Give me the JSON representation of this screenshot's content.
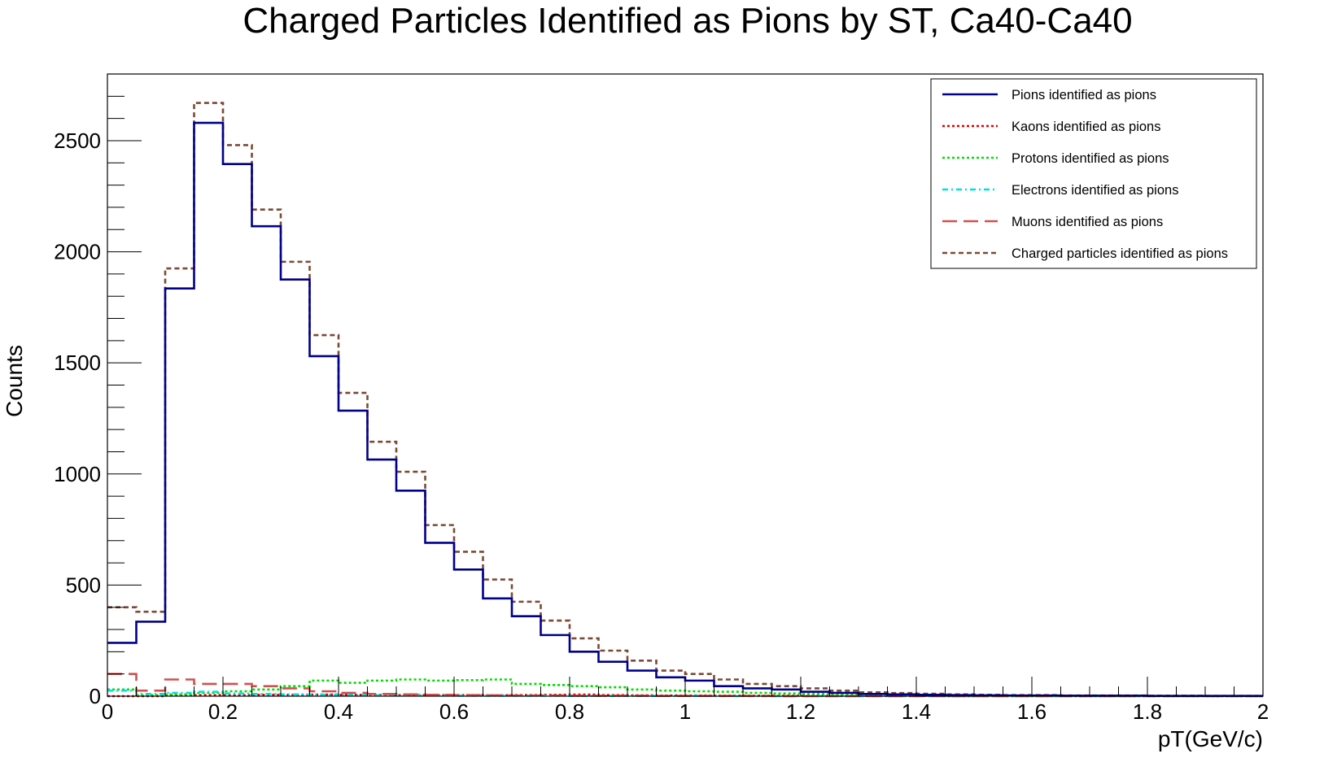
{
  "chart_data": {
    "type": "histogram",
    "title": "Charged Particles Identified as Pions by ST, Ca40-Ca40",
    "xlabel": "pT(GeV/c)",
    "ylabel": "Counts",
    "xlim": [
      0,
      2
    ],
    "ylim": [
      0,
      2800
    ],
    "bin_width": 0.05,
    "x_bin_edges_start": 0,
    "x_ticks": [
      "0",
      "0.2",
      "0.4",
      "0.6",
      "0.8",
      "1",
      "1.2",
      "1.4",
      "1.6",
      "1.8",
      "2"
    ],
    "y_ticks": [
      "0",
      "500",
      "1000",
      "1500",
      "2000",
      "2500"
    ],
    "legend_position": "top-right",
    "series": [
      {
        "name": "Pions identified as pions",
        "color": "#00008b",
        "style": "solid",
        "values": [
          240,
          335,
          1835,
          2580,
          2395,
          2115,
          1875,
          1530,
          1285,
          1065,
          925,
          690,
          570,
          440,
          360,
          275,
          200,
          155,
          115,
          85,
          70,
          45,
          35,
          30,
          20,
          15,
          10,
          8,
          6,
          5,
          4,
          3,
          3,
          2,
          2,
          2,
          1,
          1,
          1,
          1
        ]
      },
      {
        "name": "Kaons identified as pions",
        "color": "#e00000",
        "style": "dotted",
        "values": [
          0,
          0,
          3,
          5,
          5,
          6,
          6,
          7,
          6,
          6,
          5,
          5,
          5,
          4,
          5,
          6,
          7,
          5,
          4,
          3,
          3,
          2,
          2,
          2,
          1,
          1,
          1,
          1,
          1,
          0,
          0,
          0,
          0,
          0,
          0,
          0,
          0,
          0,
          0,
          0
        ]
      },
      {
        "name": "Protons identified as pions",
        "color": "#00dd00",
        "style": "dotted",
        "values": [
          30,
          5,
          8,
          15,
          22,
          30,
          45,
          70,
          60,
          70,
          75,
          70,
          72,
          75,
          55,
          50,
          45,
          40,
          30,
          25,
          22,
          20,
          15,
          12,
          10,
          8,
          6,
          5,
          4,
          3,
          2,
          2,
          2,
          1,
          1,
          1,
          1,
          1,
          0,
          0
        ]
      },
      {
        "name": "Electrons identified as pions",
        "color": "#00e0e0",
        "style": "dashdot",
        "values": [
          25,
          10,
          15,
          20,
          12,
          10,
          8,
          6,
          5,
          4,
          3,
          3,
          2,
          2,
          2,
          2,
          1,
          1,
          1,
          1,
          1,
          0,
          0,
          0,
          0,
          0,
          0,
          0,
          0,
          0,
          0,
          0,
          0,
          0,
          0,
          0,
          0,
          0,
          0,
          0
        ]
      },
      {
        "name": "Muons identified as pions",
        "color": "#d05050",
        "style": "longdash",
        "values": [
          100,
          25,
          75,
          55,
          55,
          45,
          35,
          22,
          15,
          10,
          8,
          6,
          5,
          4,
          3,
          3,
          2,
          2,
          2,
          1,
          1,
          1,
          1,
          0,
          0,
          0,
          0,
          0,
          0,
          0,
          0,
          0,
          0,
          0,
          0,
          0,
          0,
          0,
          0,
          0
        ]
      },
      {
        "name": "Charged particles identified as pions",
        "color": "#7a4a36",
        "style": "dashed",
        "values": [
          400,
          380,
          1925,
          2670,
          2480,
          2190,
          1955,
          1625,
          1365,
          1145,
          1010,
          770,
          650,
          525,
          425,
          340,
          260,
          205,
          160,
          115,
          100,
          75,
          55,
          45,
          35,
          25,
          17,
          14,
          11,
          8,
          6,
          5,
          5,
          3,
          3,
          3,
          2,
          2,
          1,
          1
        ]
      }
    ]
  }
}
